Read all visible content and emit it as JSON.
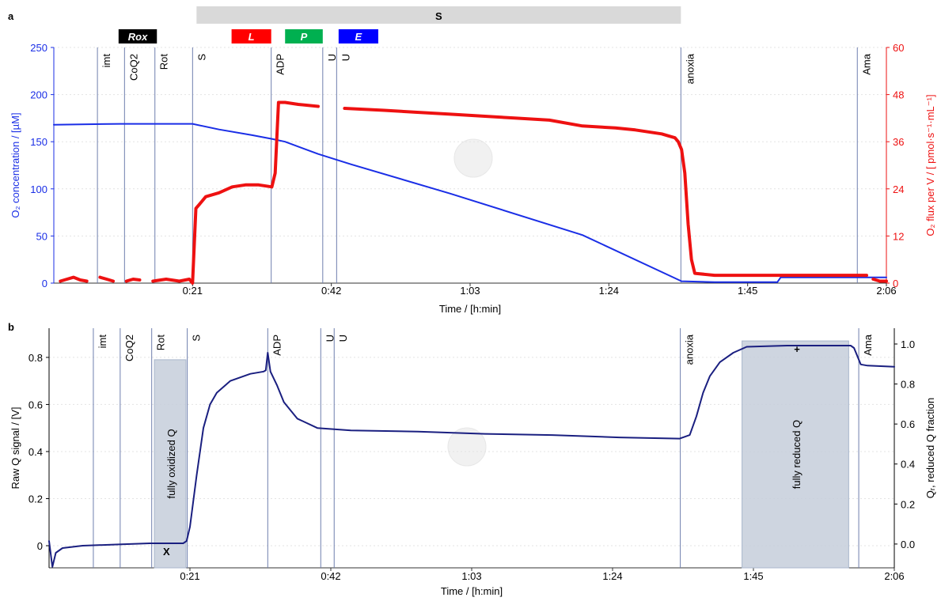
{
  "chart_data": [
    {
      "type": "line",
      "panel_label": "a",
      "xlabel": "Time / [h:min]",
      "ylabel": "O₂ concentration / [µM]",
      "y2label": "O₂ flux per V / [ pmol·s⁻¹·mL⁻¹]",
      "ycolor": "#1a2ee6",
      "y2color": "#ee1111",
      "grid": true,
      "xlim": [
        0,
        126
      ],
      "xticks": [
        {
          "value": 21,
          "label": "0:21"
        },
        {
          "value": 42,
          "label": "0:42"
        },
        {
          "value": 63,
          "label": "1:03"
        },
        {
          "value": 84,
          "label": "1:24"
        },
        {
          "value": 105,
          "label": "1:45"
        },
        {
          "value": 126,
          "label": "2:06"
        }
      ],
      "ylim": [
        0,
        250
      ],
      "yticks": [
        0,
        50,
        100,
        150,
        200,
        250
      ],
      "y2lim": [
        0,
        60
      ],
      "y2ticks": [
        0,
        12,
        24,
        36,
        48,
        60
      ],
      "series": [
        {
          "color": "#1a2ee6",
          "axis": "y",
          "x": [
            0,
            10,
            21,
            25,
            30,
            33,
            35,
            40,
            45,
            60,
            80,
            95,
            100,
            109.5,
            110,
            126
          ],
          "values": [
            168,
            169,
            169,
            163,
            157,
            153,
            150,
            137,
            126,
            95,
            51,
            2,
            1,
            1,
            6,
            6
          ]
        },
        {
          "color": "#ee1111",
          "axis": "y2",
          "x": [
            1,
            2,
            3,
            4,
            5,
            5.5,
            7,
            8,
            9,
            9.5,
            11,
            12,
            13,
            13.5,
            15,
            17,
            19,
            20.5,
            21,
            21.5,
            22,
            23,
            25,
            27,
            29,
            31,
            33,
            33.5,
            34,
            35,
            37,
            40,
            40.5,
            42,
            42.5,
            44,
            50,
            55,
            60,
            65,
            70,
            75,
            80,
            85,
            88,
            90,
            92,
            93,
            94,
            94.5,
            95,
            95.5,
            96,
            96.5,
            97,
            100,
            105,
            110,
            115,
            120,
            123,
            123.5,
            124,
            125,
            126
          ],
          "values": [
            0.5,
            1,
            1.5,
            0.8,
            0.5,
            null,
            1.5,
            1,
            0.5,
            null,
            0.5,
            1,
            0.8,
            null,
            0.5,
            1,
            0.5,
            1,
            0,
            19,
            20,
            22,
            23,
            24.5,
            25,
            25,
            24.5,
            28,
            46,
            46,
            45.5,
            45,
            null,
            45,
            null,
            44.5,
            44,
            43.5,
            43,
            42.5,
            42,
            41.5,
            40,
            39.5,
            39,
            38.5,
            38,
            37.5,
            37,
            36,
            34,
            28,
            15,
            6,
            2.5,
            2,
            2,
            2,
            2,
            2,
            2,
            null,
            1,
            0.5,
            0.5
          ]
        }
      ],
      "events": [
        {
          "label": "imt",
          "x": 6.6
        },
        {
          "label": "CoQ2",
          "x": 10.7
        },
        {
          "label": "Rot",
          "x": 15.3
        },
        {
          "label": "S",
          "x": 21
        },
        {
          "label": "ADP",
          "x": 32.9
        },
        {
          "label": "U",
          "x": 40.7
        },
        {
          "label": "U",
          "x": 42.8
        },
        {
          "label": "anoxia",
          "x": 94.9
        },
        {
          "label": "Ama",
          "x": 121.6
        }
      ],
      "condition_bar": {
        "label": "S",
        "start": 21.6,
        "end": 94.9,
        "color": "#d9d9d9"
      },
      "phases": [
        {
          "label": "Rox",
          "start": 9.8,
          "end": 15.6,
          "color": "#000000"
        },
        {
          "label": "L",
          "start": 26.9,
          "end": 32.9,
          "color": "#ff0000"
        },
        {
          "label": "P",
          "start": 35,
          "end": 40.7,
          "color": "#00b050"
        },
        {
          "label": "E",
          "start": 43.1,
          "end": 49.1,
          "color": "#0000ff"
        }
      ]
    },
    {
      "type": "line",
      "panel_label": "b",
      "xlabel": "Time / [h:min]",
      "ylabel": "Raw Q signal / [V]",
      "y2label": "Qᵣ, reduced Q fraction",
      "ycolor": "#000000",
      "y2color": "#000000",
      "grid": true,
      "xlim": [
        0,
        126
      ],
      "xticks": [
        {
          "value": 21,
          "label": "0:21"
        },
        {
          "value": 42,
          "label": "0:42"
        },
        {
          "value": 63,
          "label": "1:03"
        },
        {
          "value": 84,
          "label": "1:24"
        },
        {
          "value": 105,
          "label": "1:45"
        },
        {
          "value": 126,
          "label": "2:06"
        }
      ],
      "ylim": [
        -0.094,
        0.924
      ],
      "yticks": [
        0,
        0.2,
        0.4,
        0.6,
        0.8
      ],
      "y2lim": [
        -0.119,
        1.079
      ],
      "y2ticks": [
        {
          "value": 0,
          "label": "0.0"
        },
        0.2,
        0.4,
        0.6,
        0.8,
        {
          "value": 1,
          "label": "1.0"
        }
      ],
      "series": [
        {
          "color": "#1a1f80",
          "axis": "y",
          "x": [
            0,
            0.5,
            1,
            2,
            5,
            10,
            15,
            20,
            20.5,
            21,
            22,
            23,
            24,
            25,
            27,
            30,
            32,
            32.3,
            32.6,
            33,
            34,
            35,
            37,
            40,
            45,
            55,
            65,
            75,
            85,
            94,
            95.5,
            96.5,
            97.5,
            98.5,
            100,
            102,
            104,
            110,
            119.5,
            120,
            121,
            122,
            126
          ],
          "values": [
            0.02,
            -0.09,
            -0.03,
            -0.01,
            0,
            0.005,
            0.01,
            0.01,
            0.02,
            0.08,
            0.3,
            0.5,
            0.6,
            0.65,
            0.7,
            0.73,
            0.74,
            0.745,
            0.82,
            0.74,
            0.68,
            0.61,
            0.54,
            0.5,
            0.49,
            0.485,
            0.475,
            0.47,
            0.46,
            0.455,
            0.47,
            0.55,
            0.65,
            0.72,
            0.78,
            0.82,
            0.845,
            0.85,
            0.85,
            0.84,
            0.77,
            0.765,
            0.76
          ]
        }
      ],
      "events": [
        {
          "label": "imt",
          "x": 6.6
        },
        {
          "label": "CoQ2",
          "x": 10.6
        },
        {
          "label": "Rot",
          "x": 15.3
        },
        {
          "label": "S",
          "x": 20.6
        },
        {
          "label": "ADP",
          "x": 32.6
        },
        {
          "label": "U",
          "x": 40.5
        },
        {
          "label": "U",
          "x": 42.5
        },
        {
          "label": "anoxia",
          "x": 94.1
        },
        {
          "label": "Ama",
          "x": 120.7
        }
      ],
      "regions": [
        {
          "label": "fully oxidized Q",
          "start": 15.7,
          "end": 20.4,
          "top": 0.79
        },
        {
          "label": "fully reduced Q",
          "start": 103.3,
          "end": 119.2,
          "top": 0.87
        }
      ],
      "markers": [
        {
          "label": "X",
          "x": 17.5,
          "y": 0.0
        },
        {
          "label": "+",
          "x": 111.5,
          "y": 0.86
        }
      ]
    }
  ]
}
